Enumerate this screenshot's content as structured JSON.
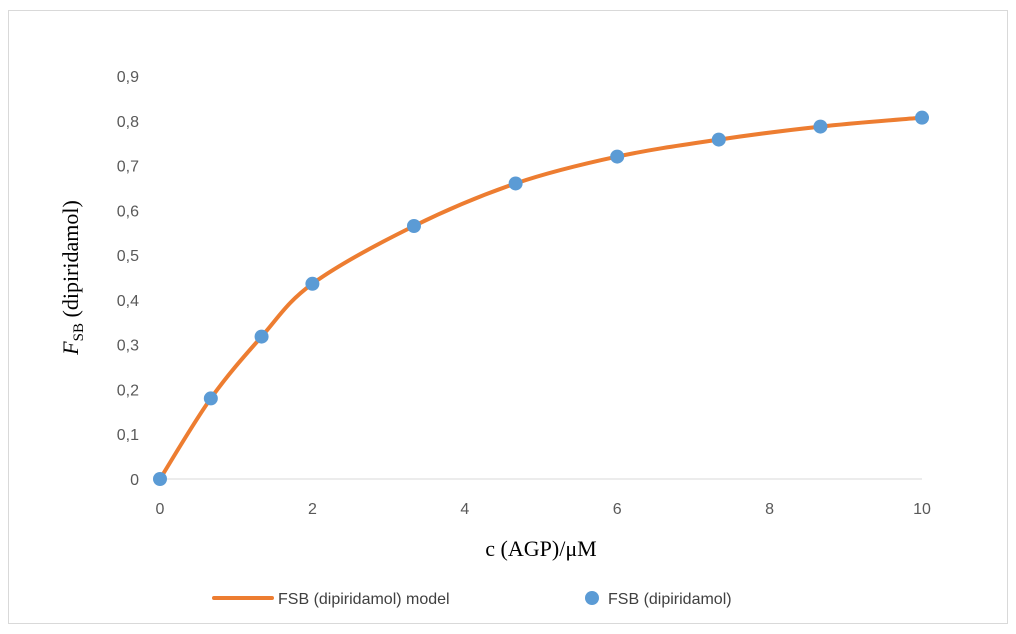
{
  "chart_data": {
    "type": "scatter",
    "xlabel": "c (AGP)/μM",
    "ylabel_main": "F",
    "ylabel_sub": "SB",
    "ylabel_rest": " (dipiridamol)",
    "xlim": [
      0,
      10
    ],
    "ylim": [
      0,
      0.9
    ],
    "x_ticks": [
      0,
      2,
      4,
      6,
      8,
      10
    ],
    "x_tick_labels": [
      "0",
      "2",
      "4",
      "6",
      "8",
      "10"
    ],
    "y_ticks": [
      0,
      0.1,
      0.2,
      0.3,
      0.4,
      0.5,
      0.6,
      0.7,
      0.8,
      0.9
    ],
    "y_tick_labels": [
      "0",
      "0,1",
      "0,2",
      "0,3",
      "0,4",
      "0,5",
      "0,6",
      "0,7",
      "0,8",
      "0,9"
    ],
    "grid": false,
    "legend_position": "bottom",
    "series": [
      {
        "name": "FSB (dipiridamol) model",
        "kind": "line",
        "color": "#ED7D31",
        "x": [
          0,
          0.667,
          1.333,
          2.0,
          3.333,
          4.667,
          6.0,
          7.333,
          8.667,
          10.0
        ],
        "y": [
          0,
          0.18,
          0.318,
          0.436,
          0.565,
          0.66,
          0.72,
          0.758,
          0.787,
          0.807
        ]
      },
      {
        "name": "FSB (dipiridamol)",
        "kind": "scatter",
        "color": "#5B9BD5",
        "x": [
          0,
          0.667,
          1.333,
          2.0,
          3.333,
          4.667,
          6.0,
          7.333,
          8.667,
          10.0
        ],
        "y": [
          0,
          0.18,
          0.318,
          0.436,
          0.565,
          0.66,
          0.72,
          0.758,
          0.787,
          0.807
        ]
      }
    ]
  }
}
